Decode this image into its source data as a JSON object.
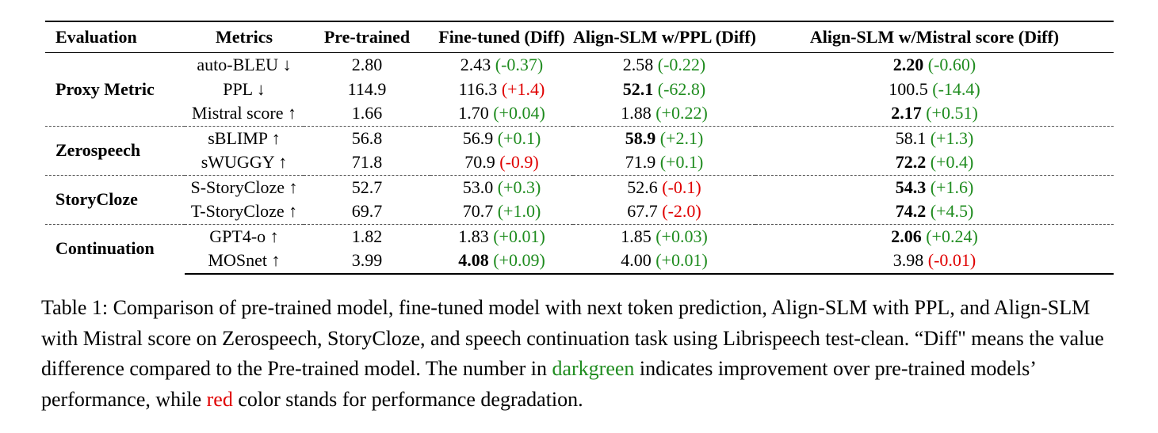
{
  "table": {
    "headers": [
      "Evaluation",
      "Metrics",
      "Pre-trained",
      "Fine-tuned (Diff)",
      "Align-SLM w/PPL (Diff)",
      "Align-SLM w/Mistral score (Diff)"
    ],
    "groups": [
      {
        "name": "Proxy Metric",
        "rows": [
          {
            "metric": "auto-BLEU ↓",
            "pre": "2.80",
            "ft": {
              "value": "2.43",
              "diff": "(-0.37)",
              "sign": "pos",
              "bold": false
            },
            "ppl": {
              "value": "2.58",
              "diff": "(-0.22)",
              "sign": "pos",
              "bold": false
            },
            "mis": {
              "value": "2.20",
              "diff": "(-0.60)",
              "sign": "pos",
              "bold": true
            }
          },
          {
            "metric": "PPL ↓",
            "pre": "114.9",
            "ft": {
              "value": "116.3",
              "diff": "(+1.4)",
              "sign": "neg",
              "bold": false
            },
            "ppl": {
              "value": "52.1",
              "diff": "(-62.8)",
              "sign": "pos",
              "bold": true
            },
            "mis": {
              "value": "100.5",
              "diff": "(-14.4)",
              "sign": "pos",
              "bold": false
            }
          },
          {
            "metric": "Mistral score ↑",
            "pre": "1.66",
            "ft": {
              "value": "1.70",
              "diff": "(+0.04)",
              "sign": "pos",
              "bold": false
            },
            "ppl": {
              "value": "1.88",
              "diff": "(+0.22)",
              "sign": "pos",
              "bold": false
            },
            "mis": {
              "value": "2.17",
              "diff": "(+0.51)",
              "sign": "pos",
              "bold": true
            }
          }
        ]
      },
      {
        "name": "Zerospeech",
        "rows": [
          {
            "metric": "sBLIMP ↑",
            "pre": "56.8",
            "ft": {
              "value": "56.9",
              "diff": "(+0.1)",
              "sign": "pos",
              "bold": false
            },
            "ppl": {
              "value": "58.9",
              "diff": "(+2.1)",
              "sign": "pos",
              "bold": true
            },
            "mis": {
              "value": "58.1",
              "diff": "(+1.3)",
              "sign": "pos",
              "bold": false
            }
          },
          {
            "metric": "sWUGGY ↑",
            "pre": "71.8",
            "ft": {
              "value": "70.9",
              "diff": "(-0.9)",
              "sign": "neg",
              "bold": false
            },
            "ppl": {
              "value": "71.9",
              "diff": "(+0.1)",
              "sign": "pos",
              "bold": false
            },
            "mis": {
              "value": "72.2",
              "diff": "(+0.4)",
              "sign": "pos",
              "bold": true
            }
          }
        ]
      },
      {
        "name": "StoryCloze",
        "rows": [
          {
            "metric": "S-StoryCloze ↑",
            "pre": "52.7",
            "ft": {
              "value": "53.0",
              "diff": "(+0.3)",
              "sign": "pos",
              "bold": false
            },
            "ppl": {
              "value": "52.6",
              "diff": "(-0.1)",
              "sign": "neg",
              "bold": false
            },
            "mis": {
              "value": "54.3",
              "diff": "(+1.6)",
              "sign": "pos",
              "bold": true
            }
          },
          {
            "metric": "T-StoryCloze ↑",
            "pre": "69.7",
            "ft": {
              "value": "70.7",
              "diff": "(+1.0)",
              "sign": "pos",
              "bold": false
            },
            "ppl": {
              "value": "67.7",
              "diff": "(-2.0)",
              "sign": "neg",
              "bold": false
            },
            "mis": {
              "value": "74.2",
              "diff": "(+4.5)",
              "sign": "pos",
              "bold": true
            }
          }
        ]
      },
      {
        "name": "Continuation",
        "rows": [
          {
            "metric": "GPT4-o ↑",
            "pre": "1.82",
            "ft": {
              "value": "1.83",
              "diff": "(+0.01)",
              "sign": "pos",
              "bold": false
            },
            "ppl": {
              "value": "1.85",
              "diff": "(+0.03)",
              "sign": "pos",
              "bold": false
            },
            "mis": {
              "value": "2.06",
              "diff": "(+0.24)",
              "sign": "pos",
              "bold": true
            }
          },
          {
            "metric": "MOSnet ↑",
            "pre": "3.99",
            "ft": {
              "value": "4.08",
              "diff": "(+0.09)",
              "sign": "pos",
              "bold": true
            },
            "ppl": {
              "value": "4.00",
              "diff": "(+0.01)",
              "sign": "pos",
              "bold": false
            },
            "mis": {
              "value": "3.98",
              "diff": "(-0.01)",
              "sign": "neg",
              "bold": false
            }
          }
        ]
      }
    ]
  },
  "colors": {
    "improvement": "#1f8c1f",
    "degradation": "#e00000"
  },
  "caption": {
    "part1": "Table 1: Comparison of pre-trained model, fine-tuned model with next token prediction, Align-SLM with PPL, and Align-SLM with Mistral score on Zerospeech, StoryCloze, and speech continuation task using Librispeech test-clean. “Diff\" means the value difference compared to the Pre-trained model. The number in ",
    "green_word": "darkgreen",
    "part2": " indicates improvement over pre-trained models’ performance, while ",
    "red_word": "red",
    "part3": " color stands for performance degradation."
  }
}
